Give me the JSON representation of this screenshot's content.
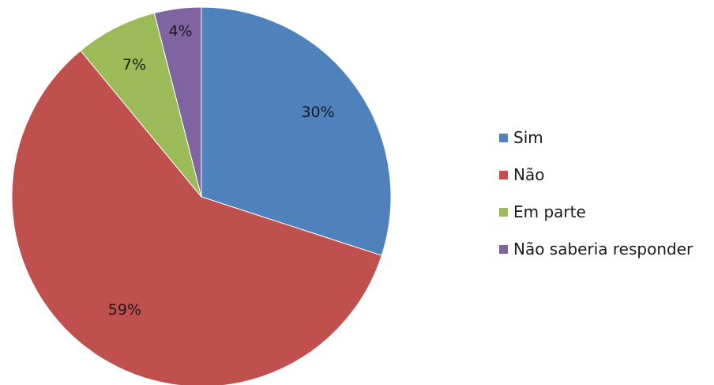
{
  "chart_data": {
    "type": "pie",
    "title": "",
    "categories": [
      "Sim",
      "Não",
      "Em parte",
      "Não saberia responder"
    ],
    "values": [
      30,
      59,
      7,
      4
    ],
    "labels": [
      "30%",
      "59%",
      "7%",
      "4%"
    ],
    "colors": [
      "#4f81bd",
      "#c0504d",
      "#9bbb59",
      "#8064a2"
    ],
    "start_angle": "12 o'clock",
    "direction": "clockwise",
    "legend": {
      "position": "right",
      "entries": [
        "Sim",
        "Não",
        "Em parte",
        "Não saberia responder"
      ]
    }
  }
}
